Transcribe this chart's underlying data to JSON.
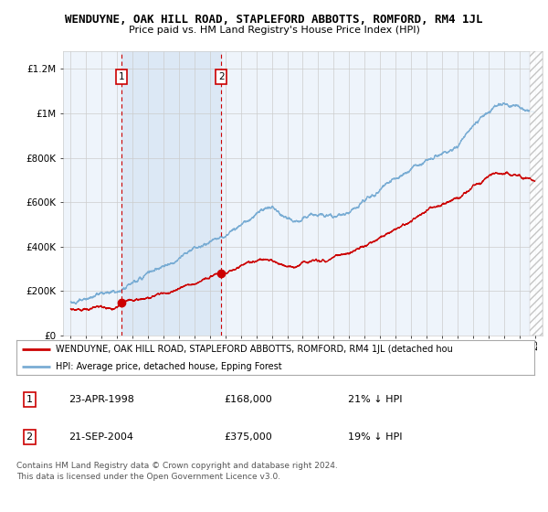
{
  "title": "WENDUYNE, OAK HILL ROAD, STAPLEFORD ABBOTTS, ROMFORD, RM4 1JL",
  "subtitle": "Price paid vs. HM Land Registry's House Price Index (HPI)",
  "ylabel_ticks": [
    "£0",
    "£200K",
    "£400K",
    "£600K",
    "£800K",
    "£1M",
    "£1.2M"
  ],
  "ytick_values": [
    0,
    200000,
    400000,
    600000,
    800000,
    1000000,
    1200000
  ],
  "ylim": [
    0,
    1280000
  ],
  "xlim_start": 1994.5,
  "xlim_end": 2025.5,
  "transactions": [
    {
      "label": "1",
      "date": "23-APR-1998",
      "price": 168000,
      "year": 1998.3,
      "pct": "21%",
      "dir": "↓"
    },
    {
      "label": "2",
      "date": "21-SEP-2004",
      "price": 375000,
      "year": 2004.72,
      "pct": "19%",
      "dir": "↓"
    }
  ],
  "legend_line1": "WENDUYNE, OAK HILL ROAD, STAPLEFORD ABBOTTS, ROMFORD, RM4 1JL (detached hou",
  "legend_line2": "HPI: Average price, detached house, Epping Forest",
  "footer1": "Contains HM Land Registry data © Crown copyright and database right 2024.",
  "footer2": "This data is licensed under the Open Government Licence v3.0.",
  "red_color": "#cc0000",
  "blue_color": "#7aadd4",
  "background_plot": "#eef4fb",
  "background_fig": "#ffffff",
  "grid_color": "#cccccc",
  "shade_color": "#dce8f5"
}
